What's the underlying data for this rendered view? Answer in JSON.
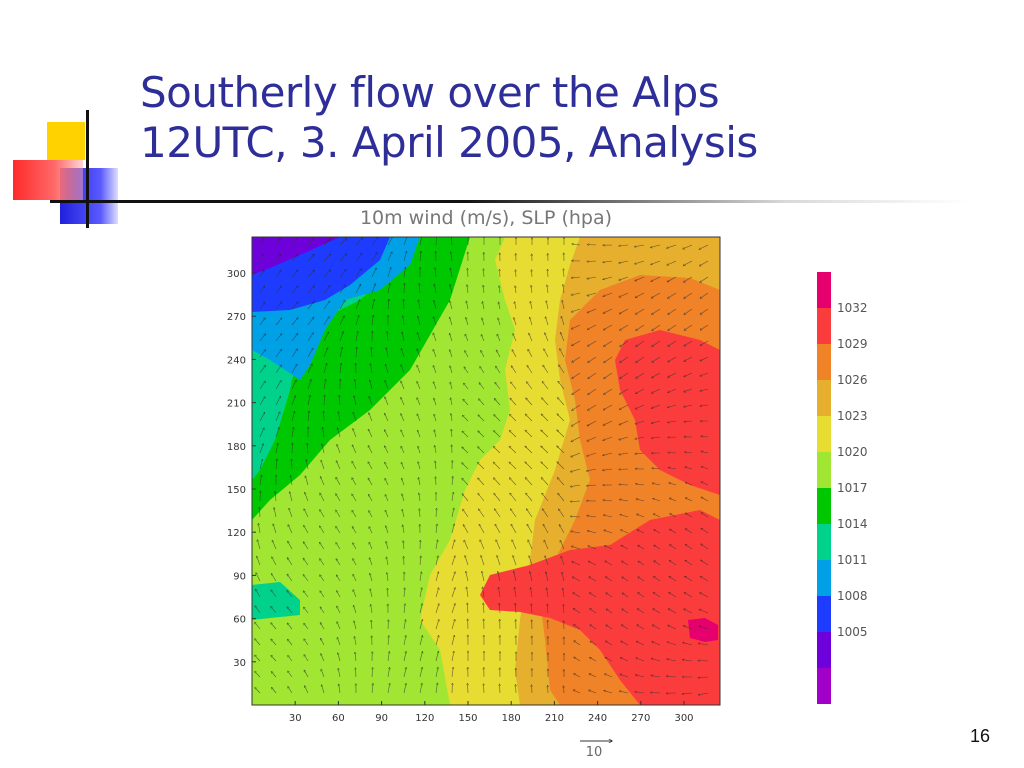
{
  "slide": {
    "title_line1": "Southerly flow over the Alps",
    "title_line2": "12UTC, 3. April 2005, Analysis",
    "number": "16",
    "title_color": "#2e2e99"
  },
  "chart_data": {
    "type": "heatmap",
    "title": "10m wind (m/s), SLP (hpa)",
    "xlabel": "",
    "ylabel": "",
    "x_ticks": [
      30,
      60,
      90,
      120,
      150,
      180,
      210,
      240,
      270,
      300
    ],
    "y_ticks": [
      30,
      60,
      90,
      120,
      150,
      180,
      210,
      240,
      270,
      300
    ],
    "xlim": [
      0,
      325
    ],
    "ylim": [
      0,
      325
    ],
    "vector_reference": {
      "label": "10",
      "units": "m/s"
    },
    "colorbar": {
      "labels": [
        "1005",
        "1008",
        "1011",
        "1014",
        "1017",
        "1020",
        "1023",
        "1026",
        "1029",
        "1032"
      ],
      "colors": [
        "#a000c8",
        "#6e00dc",
        "#1e3cff",
        "#00a0e6",
        "#00d28c",
        "#00c800",
        "#a0e632",
        "#e6dc32",
        "#e6af2d",
        "#f08228",
        "#fa3c3c",
        "#e6006e"
      ]
    },
    "regions_description": "SLP field with wind arrows"
  }
}
